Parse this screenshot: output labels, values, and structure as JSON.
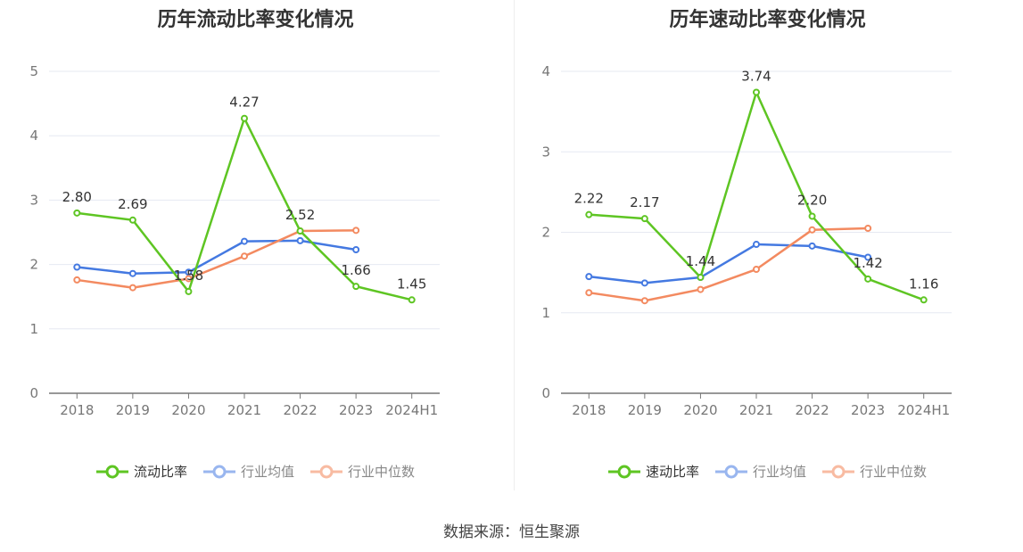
{
  "chart_data": [
    {
      "type": "line",
      "title": "历年流动比率变化情况",
      "categories": [
        "2018",
        "2019",
        "2020",
        "2021",
        "2022",
        "2023",
        "2024H1"
      ],
      "ylim": [
        0,
        5
      ],
      "yticks": [
        0,
        1,
        2,
        3,
        4,
        5
      ],
      "series": [
        {
          "name": "流动比率",
          "color": "#5ec523",
          "values": [
            2.8,
            2.69,
            1.58,
            4.27,
            2.52,
            1.66,
            1.45
          ],
          "labels": [
            "2.80",
            "2.69",
            "1.58",
            "4.27",
            "2.52",
            "1.66",
            "1.45"
          ]
        },
        {
          "name": "行业均值",
          "color": "#4479e1",
          "values": [
            1.96,
            1.86,
            1.88,
            2.36,
            2.37,
            2.23,
            null
          ]
        },
        {
          "name": "行业中位数",
          "color": "#f38a60",
          "values": [
            1.76,
            1.64,
            1.78,
            2.13,
            2.52,
            2.53,
            null
          ]
        }
      ]
    },
    {
      "type": "line",
      "title": "历年速动比率变化情况",
      "categories": [
        "2018",
        "2019",
        "2020",
        "2021",
        "2022",
        "2023",
        "2024H1"
      ],
      "ylim": [
        0,
        4
      ],
      "yticks": [
        0,
        1,
        2,
        3,
        4
      ],
      "series": [
        {
          "name": "速动比率",
          "color": "#5ec523",
          "values": [
            2.22,
            2.17,
            1.44,
            3.74,
            2.2,
            1.42,
            1.16
          ],
          "labels": [
            "2.22",
            "2.17",
            "1.44",
            "3.74",
            "2.20",
            "1.42",
            "1.16"
          ]
        },
        {
          "name": "行业均值",
          "color": "#4479e1",
          "values": [
            1.45,
            1.37,
            1.44,
            1.85,
            1.83,
            1.69,
            null
          ]
        },
        {
          "name": "行业中位数",
          "color": "#f38a60",
          "values": [
            1.25,
            1.15,
            1.29,
            1.54,
            2.03,
            2.05,
            null
          ]
        }
      ]
    }
  ],
  "legend": {
    "left": [
      "流动比率",
      "行业均值",
      "行业中位数"
    ],
    "right": [
      "速动比率",
      "行业均值",
      "行业中位数"
    ],
    "faded_color": {
      "blue": "#99b6ef",
      "orange": "#f8bba2"
    }
  },
  "footer": {
    "source_text": "数据来源：恒生聚源"
  }
}
